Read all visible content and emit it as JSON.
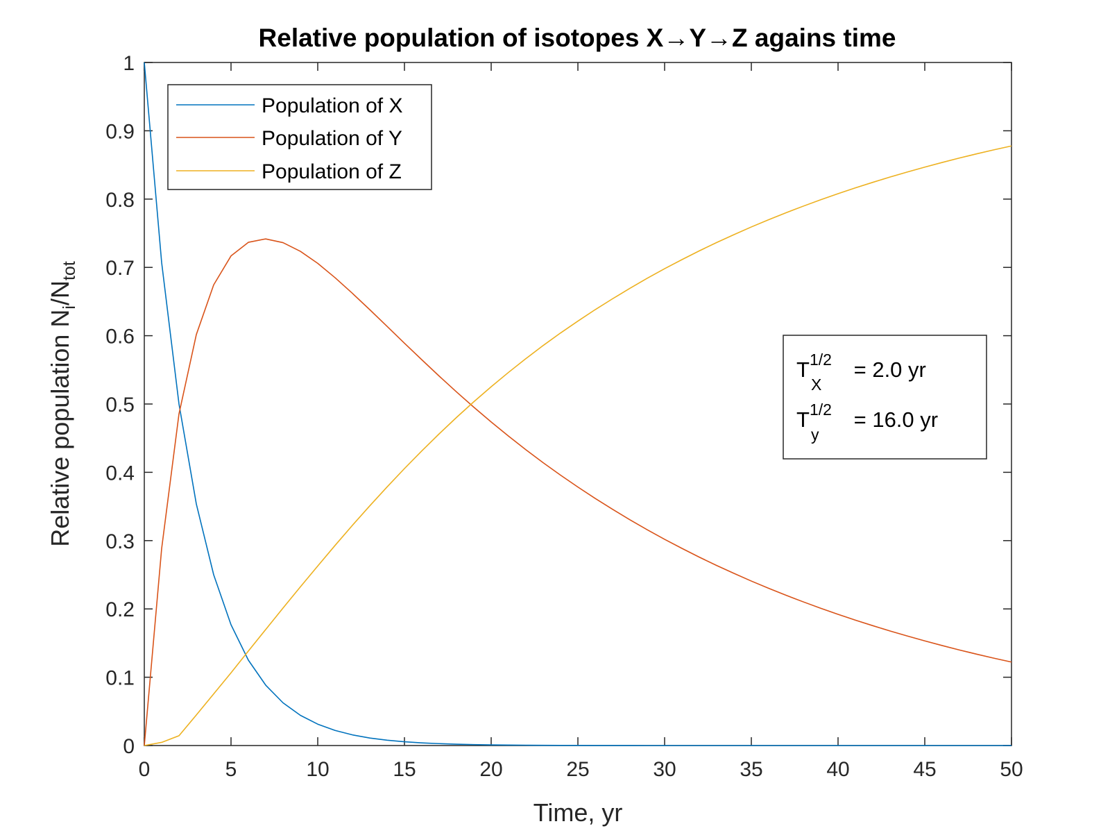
{
  "chart_data": {
    "type": "line",
    "title": "Relative population of isotopes X→Y→Z agains time",
    "xlabel": "Time, yr",
    "ylabel": {
      "main": "Relative population N",
      "sub1": "i",
      "mid": "/N",
      "sub2": "tot"
    },
    "xlim": [
      0,
      50
    ],
    "ylim": [
      0,
      1
    ],
    "xticks": [
      0,
      5,
      10,
      15,
      20,
      25,
      30,
      35,
      40,
      45,
      50
    ],
    "yticks": [
      0,
      0.1,
      0.2,
      0.3,
      0.4,
      0.5,
      0.6,
      0.7,
      0.8,
      0.9,
      1
    ],
    "xtick_labels": [
      "0",
      "5",
      "10",
      "15",
      "20",
      "25",
      "30",
      "35",
      "40",
      "45",
      "50"
    ],
    "ytick_labels": [
      "0",
      "0.1",
      "0.2",
      "0.3",
      "0.4",
      "0.5",
      "0.6",
      "0.7",
      "0.8",
      "0.9",
      "1"
    ],
    "grid": false,
    "legend_position": "top-left",
    "x": [
      0,
      1,
      2,
      3,
      4,
      5,
      6,
      7,
      8,
      9,
      10,
      11,
      12,
      13,
      14,
      15,
      16,
      17,
      18,
      19,
      20,
      21,
      22,
      23,
      24,
      25,
      26,
      27,
      28,
      29,
      30,
      31,
      32,
      33,
      34,
      35,
      36,
      37,
      38,
      39,
      40,
      41,
      42,
      43,
      44,
      45,
      46,
      47,
      48,
      49,
      50
    ],
    "series": [
      {
        "name": "Population of X",
        "color": "#0072BD",
        "values": [
          1,
          0.7071,
          0.5,
          0.3536,
          0.25,
          0.1768,
          0.125,
          0.0884,
          0.0625,
          0.0442,
          0.0313,
          0.0221,
          0.0156,
          0.011,
          0.0078,
          0.0055,
          0.0039,
          0.0028,
          0.002,
          0.0014,
          0.001,
          0.0007,
          0.0005,
          0.0003,
          0.0002,
          0.0002,
          0.0001,
          0.0001,
          0.0001,
          0,
          0,
          0,
          0,
          0,
          0,
          0,
          0,
          0,
          0,
          0,
          0,
          0,
          0,
          0,
          0,
          0,
          0,
          0,
          0,
          0,
          0
        ]
      },
      {
        "name": "Population of Y",
        "color": "#D95319",
        "values": [
          0,
          0.2883,
          0.4856,
          0.6017,
          0.6744,
          0.7168,
          0.7367,
          0.7417,
          0.7362,
          0.7235,
          0.7059,
          0.6849,
          0.662,
          0.6381,
          0.6136,
          0.589,
          0.5648,
          0.5409,
          0.5177,
          0.4953,
          0.4737,
          0.453,
          0.4331,
          0.414,
          0.3958,
          0.3784,
          0.3617,
          0.3458,
          0.3305,
          0.3159,
          0.3019,
          0.2886,
          0.2758,
          0.2636,
          0.252,
          0.2408,
          0.2302,
          0.22,
          0.2103,
          0.201,
          0.1921,
          0.1836,
          0.1755,
          0.1677,
          0.1603,
          0.1532,
          0.1464,
          0.1399,
          0.1337,
          0.1278,
          0.1222
        ]
      },
      {
        "name": "Population of Z",
        "color": "#EDB120",
        "values": [
          0,
          0.0046,
          0.0144,
          0.0447,
          0.0756,
          0.1064,
          0.1383,
          0.1699,
          0.2013,
          0.2323,
          0.2628,
          0.293,
          0.3224,
          0.3509,
          0.3786,
          0.4055,
          0.4313,
          0.4563,
          0.4803,
          0.5033,
          0.5253,
          0.5463,
          0.5664,
          0.5857,
          0.604,
          0.6214,
          0.6382,
          0.6541,
          0.6694,
          0.6841,
          0.6981,
          0.7114,
          0.7242,
          0.7364,
          0.748,
          0.7592,
          0.7698,
          0.78,
          0.7897,
          0.799,
          0.8079,
          0.8164,
          0.8245,
          0.8323,
          0.8397,
          0.8468,
          0.8536,
          0.8601,
          0.8663,
          0.8722,
          0.8778
        ]
      }
    ],
    "annotation": {
      "line1": {
        "T": "T",
        "sup": "1/2",
        "sub": "X",
        "rest": " = 2.0 yr"
      },
      "line2": {
        "T": "T",
        "sup": "1/2",
        "sub": "y",
        "rest": " = 16.0 yr"
      }
    }
  }
}
